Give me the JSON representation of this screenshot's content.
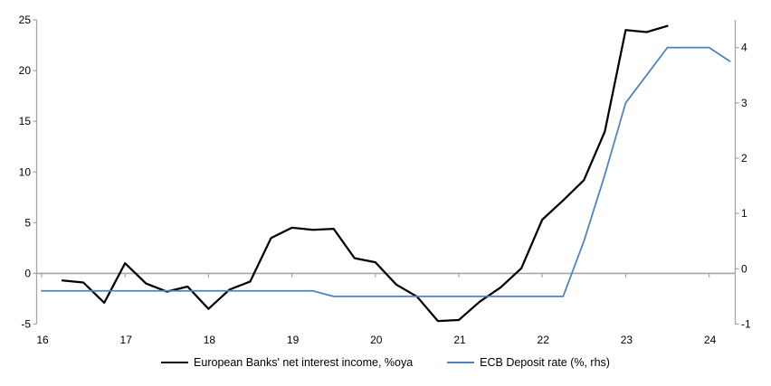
{
  "chart_data": {
    "type": "line",
    "title": "",
    "x_axis": {
      "tick_labels": [
        "16",
        "17",
        "18",
        "19",
        "20",
        "21",
        "22",
        "23",
        "24"
      ],
      "tick_years": [
        2016,
        2017,
        2018,
        2019,
        2020,
        2021,
        2022,
        2023,
        2024
      ]
    },
    "left_axis": {
      "min": -5,
      "max": 25,
      "ticks": [
        25,
        20,
        15,
        10,
        5,
        0,
        -5
      ]
    },
    "right_axis": {
      "min": -1,
      "max": 4.5,
      "ticks": [
        4,
        3,
        2,
        1,
        0,
        -1
      ]
    },
    "zero_gridline": true,
    "legend_position": "bottom",
    "series": [
      {
        "name": "European Banks' net interest income, %oya",
        "axis": "left",
        "color": "#000000",
        "stroke_width": 2.25,
        "start_year": 2016,
        "start_quarter": 2,
        "values": [
          -0.7,
          -0.9,
          -2.9,
          1.0,
          -1.0,
          -1.8,
          -1.3,
          -3.5,
          -1.6,
          -0.8,
          3.5,
          4.5,
          4.3,
          4.4,
          1.5,
          1.1,
          -1.1,
          -2.3,
          -4.7,
          -4.6,
          -2.8,
          -1.4,
          0.5,
          5.3,
          7.2,
          9.2,
          14.0,
          24.0,
          23.8,
          24.4
        ]
      },
      {
        "name": "ECB Deposit rate (%, rhs)",
        "axis": "right",
        "color": "#4f81bd",
        "stroke_width": 1.75,
        "start_year": 2016,
        "start_quarter": 1,
        "values": [
          -0.4,
          -0.4,
          -0.4,
          -0.4,
          -0.4,
          -0.4,
          -0.4,
          -0.4,
          -0.4,
          -0.4,
          -0.4,
          -0.4,
          -0.4,
          -0.4,
          -0.5,
          -0.5,
          -0.5,
          -0.5,
          -0.5,
          -0.5,
          -0.5,
          -0.5,
          -0.5,
          -0.5,
          -0.5,
          -0.5,
          0.5,
          1.7,
          3.0,
          3.5,
          4.0,
          4.0,
          4.0,
          3.75
        ]
      }
    ],
    "colors": {
      "axis_line": "#a6a6a6",
      "zero_line": "#a6a6a6",
      "text": "#000000",
      "background": "#ffffff"
    }
  }
}
